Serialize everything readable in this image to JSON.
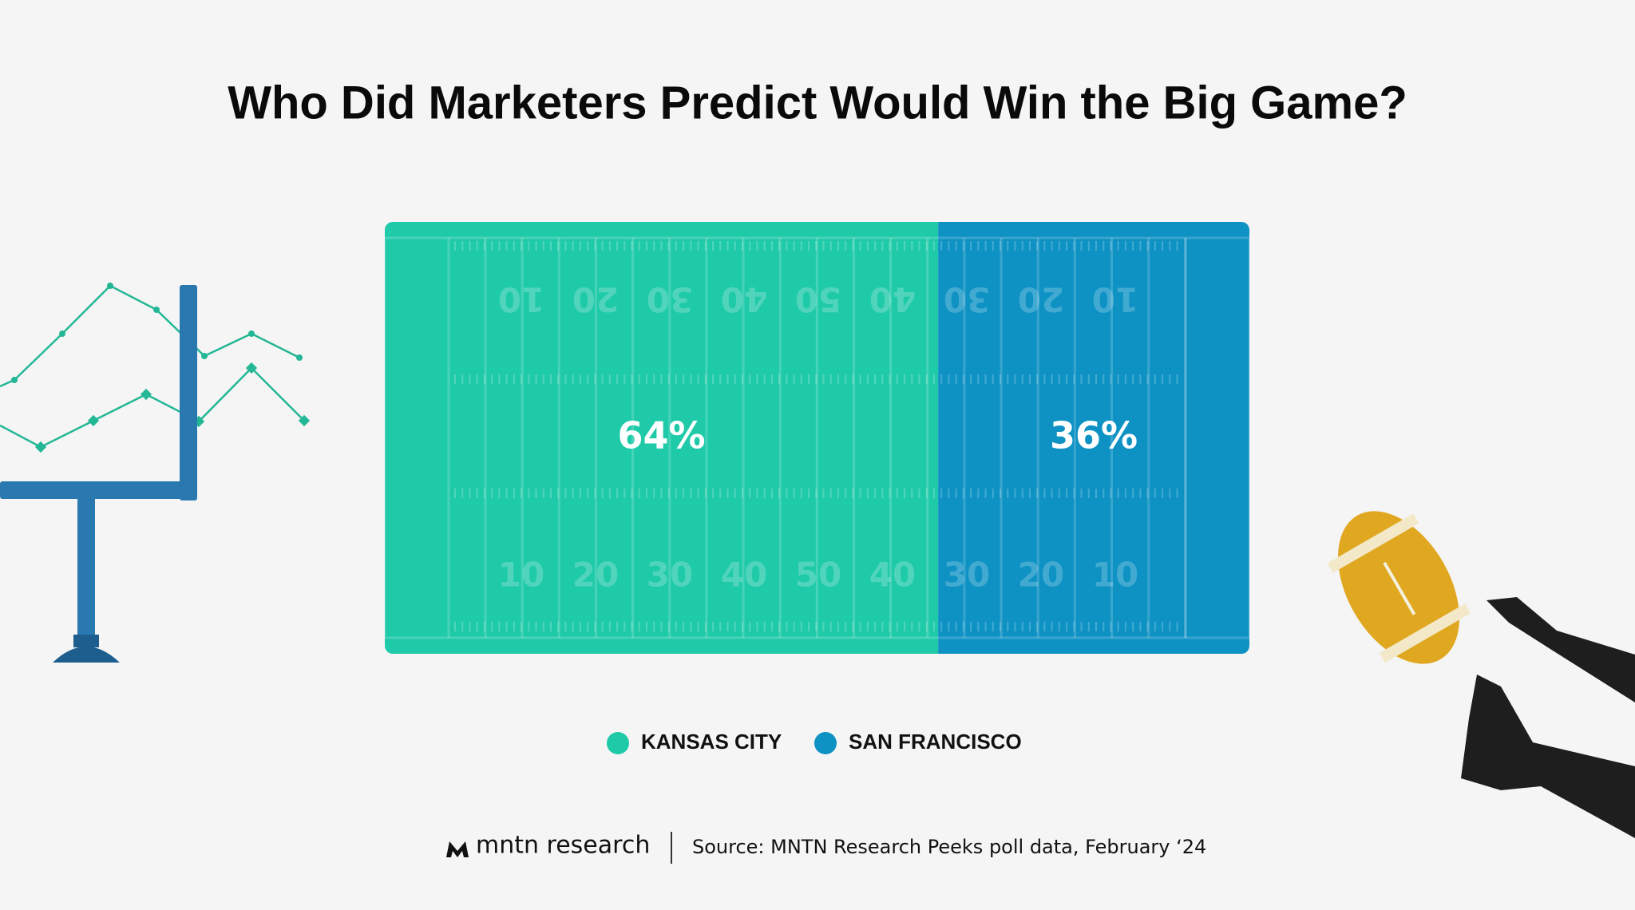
{
  "chart_data": {
    "type": "bar",
    "orientation": "horizontal",
    "stacked": true,
    "title": "Who Did Marketers Predict Would Win the Big Game?",
    "series": [
      {
        "name": "KANSAS CITY",
        "color": "#1fcaa9",
        "values": [
          64
        ],
        "value_labels": [
          "64%"
        ]
      },
      {
        "name": "SAN FRANCISCO",
        "color": "#0e92c4",
        "values": [
          36
        ],
        "value_labels": [
          "36%"
        ]
      }
    ],
    "legend": "bottom"
  },
  "field": {
    "yard_numbers": [
      "10",
      "20",
      "30",
      "40",
      "50",
      "40",
      "30",
      "20",
      "10"
    ]
  },
  "footer": {
    "brand": "mntn research",
    "source": "Source: MNTN Research Peeks poll data, February ‘24"
  }
}
